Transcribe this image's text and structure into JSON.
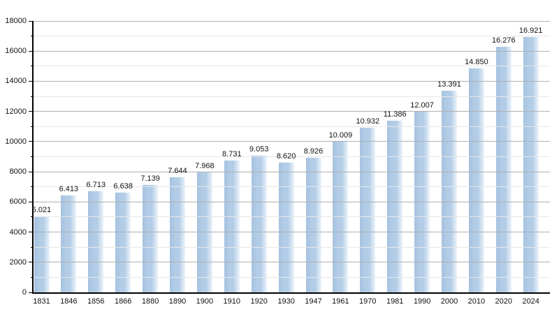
{
  "chart_data": {
    "type": "bar",
    "title": "",
    "xlabel": "",
    "ylabel": "",
    "categories": [
      "1831",
      "1846",
      "1856",
      "1866",
      "1880",
      "1890",
      "1900",
      "1910",
      "1920",
      "1930",
      "1947",
      "1961",
      "1970",
      "1981",
      "1990",
      "2000",
      "2010",
      "2020",
      "2024"
    ],
    "values": [
      5021,
      6413,
      6713,
      6638,
      7139,
      7644,
      7968,
      8731,
      9053,
      8620,
      8926,
      10009,
      10932,
      11386,
      12007,
      13391,
      14850,
      16276,
      16921
    ],
    "value_labels": [
      "5.021",
      "6.413",
      "6.713",
      "6.638",
      "7.139",
      "7.644",
      "7.968",
      "8.731",
      "9.053",
      "8.620",
      "8.926",
      "10.009",
      "10.932",
      "11.386",
      "12.007",
      "13.391",
      "14.850",
      "16.276",
      "16.921"
    ],
    "y_tick_labels": [
      "0",
      "2000",
      "4000",
      "6000",
      "8000",
      "10000",
      "12000",
      "14000",
      "16000",
      "18000"
    ],
    "ylim": [
      0,
      18000
    ],
    "y_major_step": 2000,
    "y_minor_step": 1000,
    "grid": true,
    "legend": "none",
    "colors": {
      "bar_edge": "#a5c2e0",
      "bar_main": "#b3cde7",
      "bar_fade": "#edf4fb",
      "grid_major": "#b0b0b0",
      "grid_minor": "#e7e7e7",
      "axis": "#000000",
      "text": "#111111",
      "background": "#ffffff"
    }
  }
}
